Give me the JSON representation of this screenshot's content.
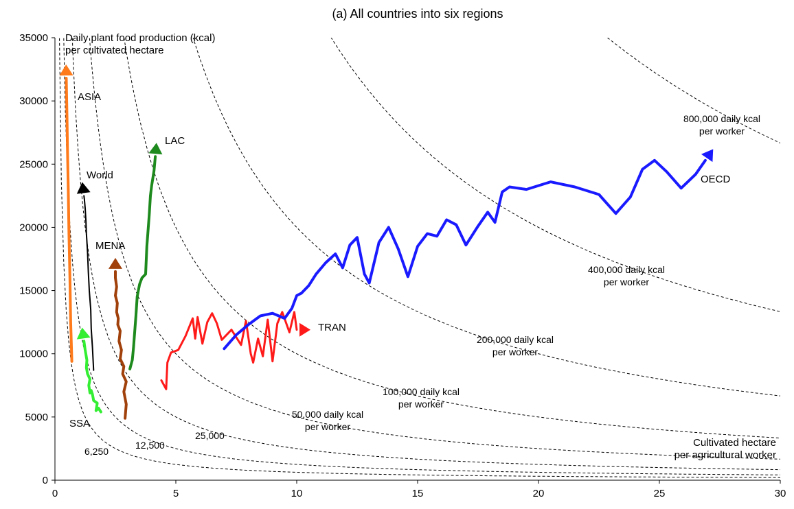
{
  "chart_data": {
    "type": "line",
    "title": "(a) All countries into six regions",
    "y_axis_title": [
      "Daily plant food production (kcal)",
      "per cultivated hectare"
    ],
    "x_axis_title": [
      "Cultivated hectare",
      "per agricultural worker"
    ],
    "xlim": [
      0,
      30
    ],
    "ylim": [
      0,
      35000
    ],
    "x_ticks": [
      0,
      5,
      10,
      15,
      20,
      25,
      30
    ],
    "y_ticks": [
      0,
      5000,
      10000,
      15000,
      20000,
      25000,
      30000,
      35000
    ],
    "grid": false,
    "isoquants": [
      {
        "k": 6250,
        "label": [
          "6,250"
        ]
      },
      {
        "k": 12500,
        "label": [
          "12,500"
        ]
      },
      {
        "k": 25000,
        "label": [
          "25,000"
        ]
      },
      {
        "k": 50000,
        "label": [
          "50,000 daily kcal",
          "per worker"
        ]
      },
      {
        "k": 100000,
        "label": [
          "100,000 daily kcal",
          "per worker"
        ]
      },
      {
        "k": 200000,
        "label": [
          "200,000 daily kcal",
          "per worker"
        ]
      },
      {
        "k": 400000,
        "label": [
          "400,000 daily kcal",
          "per worker"
        ]
      },
      {
        "k": 800000,
        "label": [
          "800,000 daily kcal",
          "per worker"
        ]
      }
    ],
    "series": [
      {
        "name": "ASIA",
        "color": "#ff7a1a",
        "width": 4,
        "x": [
          0.7,
          0.65,
          0.62,
          0.58,
          0.55,
          0.52,
          0.5,
          0.48,
          0.47
        ],
        "y": [
          9400,
          12500,
          16000,
          19500,
          23000,
          26000,
          28500,
          30500,
          31800
        ]
      },
      {
        "name": "World",
        "color": "#000000",
        "width": 2,
        "x": [
          1.6,
          1.55,
          1.5,
          1.48,
          1.42,
          1.38,
          1.35,
          1.3,
          1.28,
          1.25,
          1.22,
          1.2
        ],
        "y": [
          8700,
          10500,
          12000,
          13500,
          15000,
          16500,
          18000,
          19500,
          20500,
          21500,
          22200,
          22500
        ]
      },
      {
        "name": "SSA",
        "color": "#33ee33",
        "width": 4,
        "x": [
          1.9,
          1.8,
          1.7,
          1.75,
          1.6,
          1.55,
          1.5,
          1.45,
          1.4,
          1.45,
          1.35,
          1.3,
          1.32,
          1.25,
          1.2
        ],
        "y": [
          5400,
          5700,
          5500,
          6100,
          6300,
          6800,
          7100,
          6900,
          7500,
          8000,
          8400,
          8900,
          9500,
          10300,
          11000
        ]
      },
      {
        "name": "MENA",
        "color": "#a0400a",
        "width": 4,
        "x": [
          2.9,
          2.95,
          2.85,
          2.95,
          2.8,
          2.85,
          2.7,
          2.75,
          2.65,
          2.7,
          2.6,
          2.62,
          2.55,
          2.58,
          2.5,
          2.55,
          2.5,
          2.5
        ],
        "y": [
          4900,
          6000,
          7000,
          7800,
          8400,
          9000,
          9600,
          10300,
          11000,
          11800,
          12300,
          12800,
          13300,
          14000,
          14600,
          15300,
          16000,
          16500
        ]
      },
      {
        "name": "LAC",
        "color": "#1e8a1e",
        "width": 4,
        "x": [
          3.1,
          3.2,
          3.25,
          3.3,
          3.35,
          3.4,
          3.5,
          3.6,
          3.75,
          3.8,
          3.9,
          3.95,
          4.0,
          4.1,
          4.15
        ],
        "y": [
          8800,
          9500,
          10500,
          11800,
          13000,
          14500,
          15500,
          16000,
          16300,
          18500,
          21000,
          22500,
          23300,
          24500,
          25600
        ]
      },
      {
        "name": "TRAN",
        "color": "#ff1a1a",
        "width": 3,
        "x": [
          4.4,
          4.6,
          4.65,
          4.8,
          5.1,
          5.4,
          5.7,
          5.8,
          5.9,
          6.1,
          6.3,
          6.5,
          6.7,
          6.9,
          7.3,
          7.7,
          7.9,
          8.1,
          8.2,
          8.4,
          8.6,
          8.8,
          9.0,
          9.2,
          9.4,
          9.7,
          9.9,
          10.0
        ],
        "y": [
          7900,
          7200,
          9300,
          10100,
          10300,
          11400,
          12800,
          11200,
          12900,
          10800,
          12500,
          13200,
          12400,
          11100,
          11900,
          10700,
          12600,
          10000,
          9300,
          11200,
          9800,
          12700,
          9400,
          12400,
          13300,
          11700,
          13300,
          11900
        ]
      },
      {
        "name": "OECD",
        "color": "#1a1aff",
        "width": 4,
        "x": [
          7.0,
          7.5,
          8.0,
          8.5,
          9.0,
          9.5,
          9.8,
          10.0,
          10.2,
          10.5,
          10.8,
          11.2,
          11.6,
          11.9,
          12.2,
          12.5,
          12.8,
          13.0,
          13.4,
          13.8,
          14.2,
          14.6,
          15.0,
          15.4,
          15.8,
          16.2,
          16.6,
          17.0,
          17.5,
          17.9,
          18.2,
          18.5,
          18.8,
          19.5,
          20.5,
          21.5,
          22.5,
          23.2,
          23.8,
          24.3,
          24.8,
          25.3,
          25.9,
          26.5,
          26.9
        ],
        "y": [
          10400,
          11500,
          12300,
          13000,
          13200,
          12800,
          13600,
          14600,
          14800,
          15400,
          16300,
          17200,
          17900,
          16800,
          18600,
          19200,
          16300,
          15600,
          18800,
          20000,
          18300,
          16100,
          18500,
          19500,
          19300,
          20600,
          20200,
          18600,
          20100,
          21200,
          20400,
          22800,
          23200,
          23000,
          23600,
          23200,
          22600,
          21100,
          22400,
          24600,
          25300,
          24400,
          23100,
          24200,
          25300
        ]
      }
    ],
    "series_labels": [
      "ASIA",
      "World",
      "SSA",
      "MENA",
      "LAC",
      "TRAN",
      "OECD"
    ]
  }
}
